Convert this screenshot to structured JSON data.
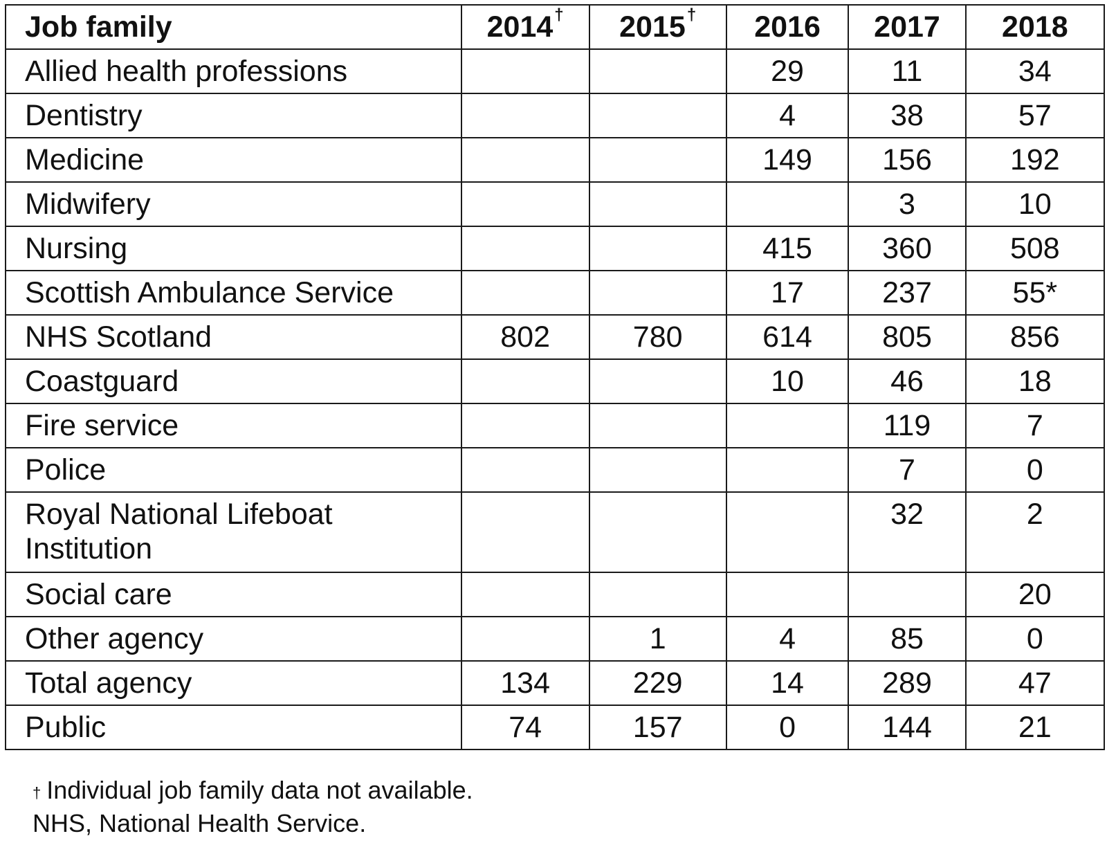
{
  "table": {
    "headers": [
      "Job family",
      "2014",
      "2015",
      "2016",
      "2017",
      "2018"
    ],
    "header_markers": [
      "",
      "†",
      "†",
      "",
      "",
      ""
    ],
    "rows": [
      {
        "label": "Allied health professions",
        "values": [
          "",
          "",
          "29",
          "11",
          "34"
        ]
      },
      {
        "label": "Dentistry",
        "values": [
          "",
          "",
          "4",
          "38",
          "57"
        ]
      },
      {
        "label": "Medicine",
        "values": [
          "",
          "",
          "149",
          "156",
          "192"
        ]
      },
      {
        "label": "Midwifery",
        "values": [
          "",
          "",
          "",
          "3",
          "10"
        ]
      },
      {
        "label": "Nursing",
        "values": [
          "",
          "",
          "415",
          "360",
          "508"
        ]
      },
      {
        "label": "Scottish Ambulance Service",
        "values": [
          "",
          "",
          "17",
          "237",
          "55*"
        ]
      },
      {
        "label": "NHS Scotland",
        "values": [
          "802",
          "780",
          "614",
          "805",
          "856"
        ]
      },
      {
        "label": "Coastguard",
        "values": [
          "",
          "",
          "10",
          "46",
          "18"
        ]
      },
      {
        "label": "Fire service",
        "values": [
          "",
          "",
          "",
          "119",
          "7"
        ]
      },
      {
        "label": "Police",
        "values": [
          "",
          "",
          "",
          "7",
          "0"
        ]
      },
      {
        "label": "Royal National Lifeboat Institution",
        "values": [
          "",
          "",
          "",
          "32",
          "2"
        ]
      },
      {
        "label": "Social care",
        "values": [
          "",
          "",
          "",
          "",
          "20"
        ]
      },
      {
        "label": "Other agency",
        "values": [
          "",
          "1",
          "4",
          "85",
          "0"
        ]
      },
      {
        "label": "Total agency",
        "values": [
          "134",
          "229",
          "14",
          "289",
          "47"
        ]
      },
      {
        "label": "Public",
        "values": [
          "74",
          "157",
          "0",
          "144",
          "21"
        ]
      }
    ]
  },
  "footnotes": {
    "dagger_symbol": "†",
    "dagger_note": "Individual job family data not available.",
    "abbreviation_note": "NHS, National Health Service."
  }
}
